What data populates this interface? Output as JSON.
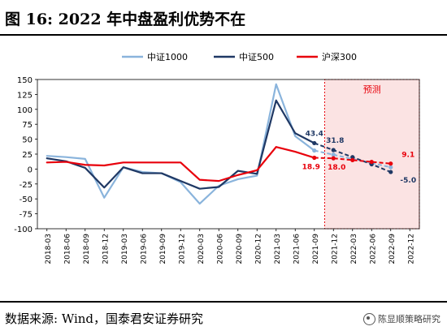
{
  "figure_title": "图 16:  2022 年中盘盈利优势不在",
  "source": "数据来源:  Wind，国泰君安证券研究",
  "watermark": "陈显顺策略研究",
  "colors": {
    "zz1000": "#8ab4dc",
    "zz500": "#1f3864",
    "hs300": "#e8000b",
    "forecast_band": "#fbe3e3",
    "forecast_border": "#e8000b"
  },
  "chart_data": {
    "type": "line",
    "x": [
      "2018-03",
      "2018-06",
      "2018-09",
      "2018-12",
      "2019-03",
      "2019-06",
      "2019-09",
      "2019-12",
      "2020-03",
      "2020-06",
      "2020-09",
      "2020-12",
      "2021-03",
      "2021-06",
      "2021-09",
      "2021-12",
      "2022-03",
      "2022-06",
      "2022-09",
      "2022-12"
    ],
    "ylim": [
      -100,
      150
    ],
    "yticks": [
      -100,
      -75,
      -50,
      -25,
      0,
      25,
      50,
      75,
      100,
      125,
      150
    ],
    "forecast_label": "预测",
    "forecast_range": [
      "2021-12",
      "2022-12"
    ],
    "legend_position": "top-center",
    "series": [
      {
        "name": "中证1000",
        "color_key": "zz1000",
        "actual": [
          22,
          20,
          17,
          -48,
          3,
          -5,
          -7,
          -22,
          -58,
          -28,
          -17,
          -11,
          142,
          55,
          31
        ],
        "forecast": [
          31,
          24,
          17,
          10,
          3
        ]
      },
      {
        "name": "中证500",
        "color_key": "zz500",
        "actual": [
          18,
          13,
          2,
          -31,
          3,
          -7,
          -7,
          -20,
          -33,
          -30,
          -3,
          -8,
          115,
          60,
          43.4
        ],
        "forecast": [
          43.4,
          31.8,
          20,
          8,
          -5.0
        ]
      },
      {
        "name": "沪深300",
        "color_key": "hs300",
        "actual": [
          11,
          12,
          7,
          6,
          11,
          11,
          11,
          11,
          -18,
          -20,
          -10,
          -2,
          37,
          29,
          18.9
        ],
        "forecast": [
          18.9,
          18.0,
          15,
          12,
          9.1
        ]
      }
    ],
    "annotations": [
      {
        "text": "43.4",
        "series": "中证500",
        "x": "2021-09",
        "y": 43.4
      },
      {
        "text": "31.8",
        "series": "中证500",
        "x": "2021-12",
        "y": 31.8
      },
      {
        "text": "-5.0",
        "series": "中证500",
        "x": "2022-12",
        "y": -5.0
      },
      {
        "text": "18.9",
        "series": "沪深300",
        "x": "2021-09",
        "y": 18.9
      },
      {
        "text": "18.0",
        "series": "沪深300",
        "x": "2021-12",
        "y": 18.0
      },
      {
        "text": "9.1",
        "series": "沪深300",
        "x": "2022-12",
        "y": 9.1
      }
    ]
  }
}
